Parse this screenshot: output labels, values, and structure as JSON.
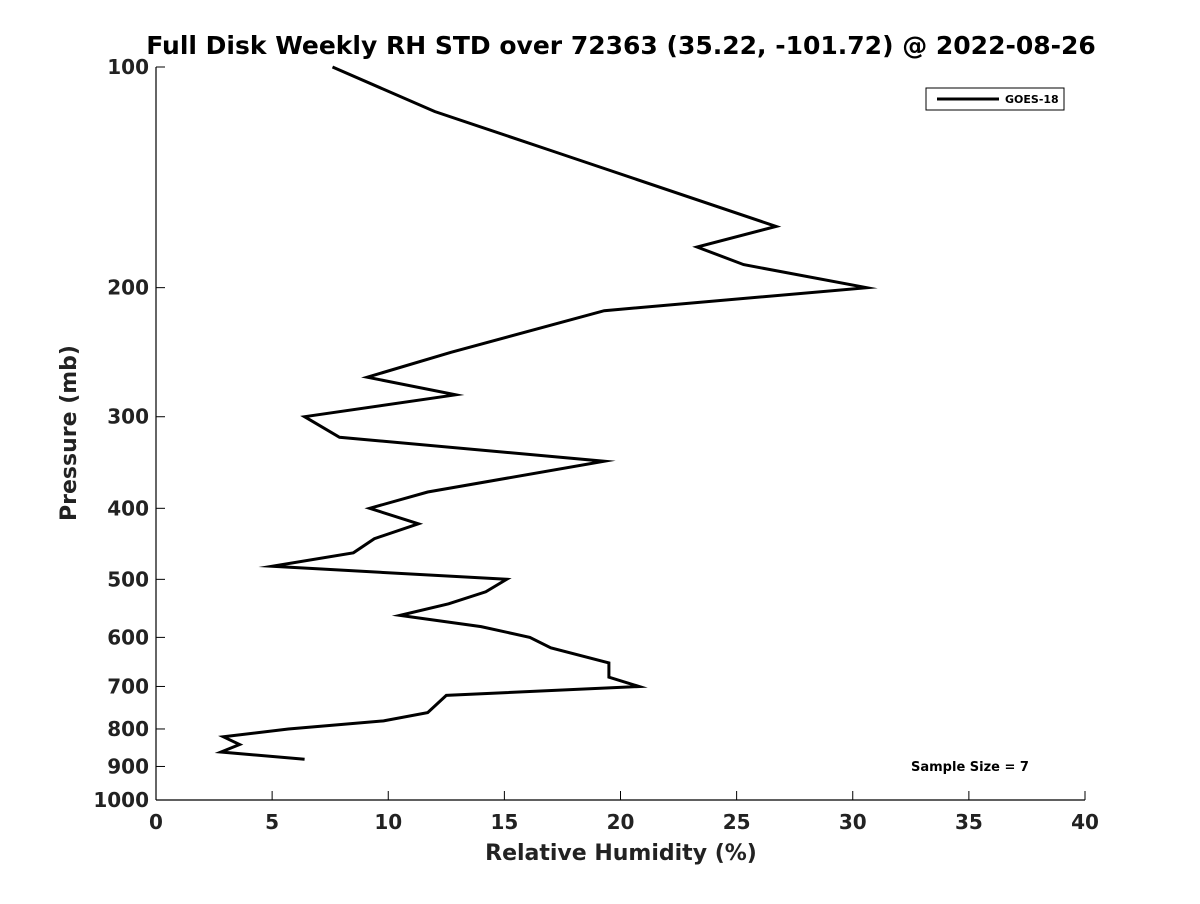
{
  "chart_data": {
    "type": "line",
    "title": "Full Disk Weekly RH STD over 72363 (35.22, -101.72) @ 2022-08-26",
    "xlabel": "Relative Humidity (%)",
    "ylabel": "Pressure (mb)",
    "xlim": [
      0,
      40
    ],
    "ylim": [
      100,
      1000
    ],
    "yscale": "log",
    "yreversed": true,
    "xticks": [
      0,
      5,
      10,
      15,
      20,
      25,
      30,
      35,
      40
    ],
    "yticks": [
      100,
      200,
      300,
      400,
      500,
      600,
      700,
      800,
      900,
      1000
    ],
    "grid": false,
    "legend_position": "top-right",
    "annotation": "Sample Size = 7",
    "series": [
      {
        "name": "GOES-18",
        "color": "#000000",
        "points": [
          {
            "x": 7.6,
            "p": 100
          },
          {
            "x": 12.0,
            "p": 115
          },
          {
            "x": 17.0,
            "p": 130
          },
          {
            "x": 26.7,
            "p": 165
          },
          {
            "x": 23.3,
            "p": 176
          },
          {
            "x": 25.3,
            "p": 186
          },
          {
            "x": 30.6,
            "p": 200
          },
          {
            "x": 19.3,
            "p": 215
          },
          {
            "x": 12.7,
            "p": 245
          },
          {
            "x": 9.1,
            "p": 265
          },
          {
            "x": 12.9,
            "p": 280
          },
          {
            "x": 6.4,
            "p": 300
          },
          {
            "x": 7.9,
            "p": 320
          },
          {
            "x": 19.3,
            "p": 345
          },
          {
            "x": 11.7,
            "p": 380
          },
          {
            "x": 9.2,
            "p": 400
          },
          {
            "x": 11.3,
            "p": 420
          },
          {
            "x": 9.4,
            "p": 440
          },
          {
            "x": 8.5,
            "p": 460
          },
          {
            "x": 5.0,
            "p": 480
          },
          {
            "x": 15.1,
            "p": 500
          },
          {
            "x": 14.2,
            "p": 520
          },
          {
            "x": 12.6,
            "p": 540
          },
          {
            "x": 10.5,
            "p": 560
          },
          {
            "x": 14.0,
            "p": 580
          },
          {
            "x": 16.1,
            "p": 600
          },
          {
            "x": 17.0,
            "p": 620
          },
          {
            "x": 19.5,
            "p": 650
          },
          {
            "x": 19.5,
            "p": 680
          },
          {
            "x": 20.8,
            "p": 700
          },
          {
            "x": 12.5,
            "p": 720
          },
          {
            "x": 11.7,
            "p": 760
          },
          {
            "x": 9.8,
            "p": 780
          },
          {
            "x": 5.7,
            "p": 800
          },
          {
            "x": 2.9,
            "p": 820
          },
          {
            "x": 3.6,
            "p": 840
          },
          {
            "x": 2.8,
            "p": 860
          },
          {
            "x": 6.4,
            "p": 880
          }
        ]
      }
    ]
  }
}
